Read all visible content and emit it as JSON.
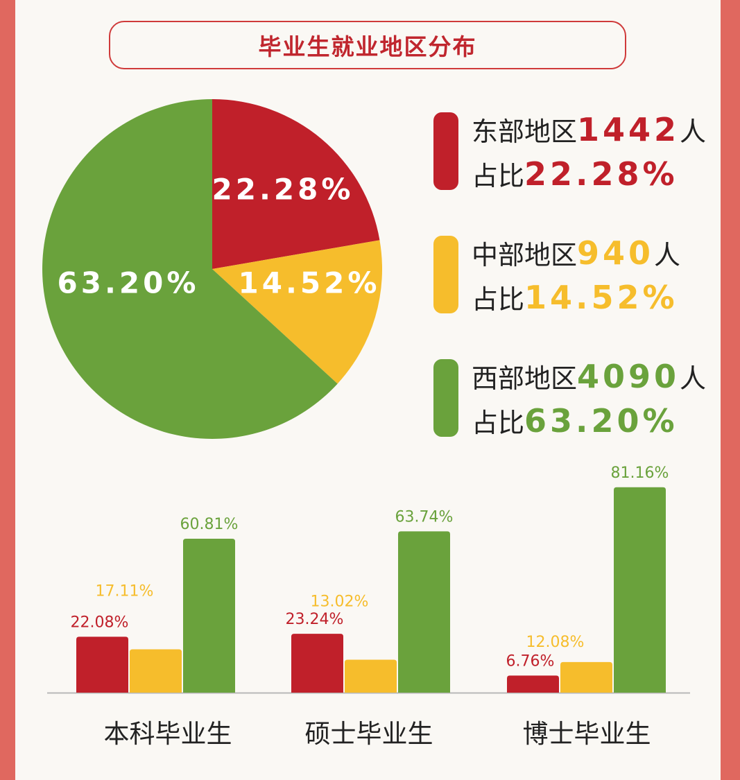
{
  "title": "毕业生就业地区分布",
  "colors": {
    "east": "#c0202a",
    "central": "#f6bd2c",
    "west": "#6aa23c"
  },
  "legend": [
    {
      "name": "东部地区",
      "count": "1442",
      "unit": "人",
      "ratio_label": "占比",
      "ratio": "22.28%",
      "color": "#c0202a"
    },
    {
      "name": "中部地区",
      "count": "940",
      "unit": "人",
      "ratio_label": "占比",
      "ratio": "14.52%",
      "color": "#f6bd2c"
    },
    {
      "name": "西部地区",
      "count": "4090",
      "unit": "人",
      "ratio_label": "占比",
      "ratio": "63.20%",
      "color": "#6aa23c"
    }
  ],
  "chart_data": [
    {
      "type": "pie",
      "labels": [
        "东部地区",
        "中部地区",
        "西部地区"
      ],
      "values": [
        22.28,
        14.52,
        63.2
      ],
      "value_labels": [
        "22.28%",
        "14.52%",
        "63.20%"
      ],
      "colors": [
        "#c0202a",
        "#f6bd2c",
        "#6aa23c"
      ]
    },
    {
      "type": "bar",
      "categories": [
        "本科毕业生",
        "硕士毕业生",
        "博士毕业生"
      ],
      "series": [
        {
          "values": [
            22.08,
            23.24,
            6.76
          ],
          "labels": [
            "22.08%",
            "23.24%",
            "6.76%"
          ],
          "color": "#c0202a"
        },
        {
          "values": [
            17.11,
            13.02,
            12.08
          ],
          "labels": [
            "17.11%",
            "13.02%",
            "12.08%"
          ],
          "color": "#f6bd2c"
        },
        {
          "values": [
            60.81,
            63.74,
            81.16
          ],
          "labels": [
            "60.81%",
            "63.74%",
            "81.16%"
          ],
          "color": "#6aa23c"
        }
      ]
    }
  ]
}
